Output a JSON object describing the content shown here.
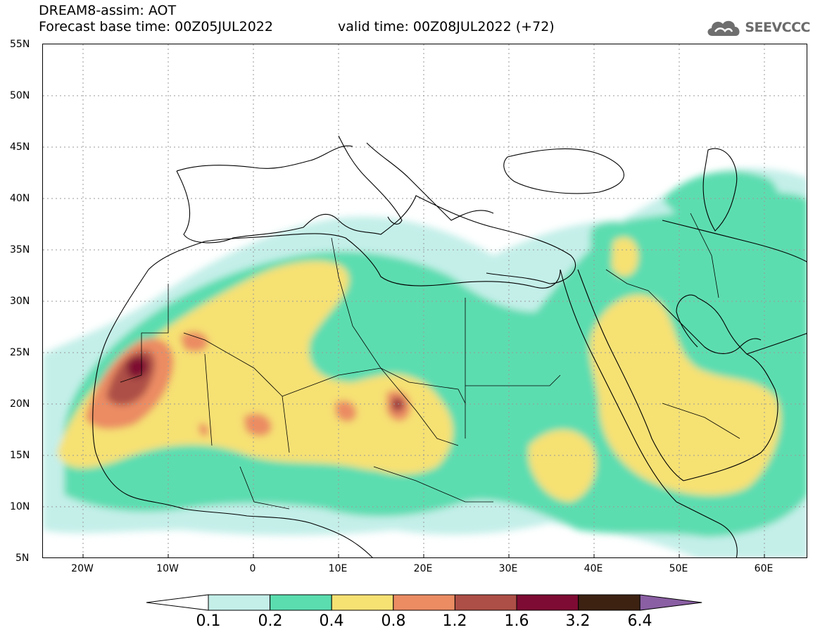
{
  "header": {
    "title": "DREAM8-assim: AOT",
    "base_time": "Forecast base time: 00Z05JUL2022",
    "valid_time": "valid time: 00Z08JUL2022 (+72)"
  },
  "logo": {
    "text": "SEEVCCC",
    "icon": "cloud-icon"
  },
  "map": {
    "lon_range": [
      -25,
      65
    ],
    "lat_range": [
      5,
      55
    ],
    "lat_labels": [
      "55N",
      "50N",
      "45N",
      "40N",
      "35N",
      "30N",
      "25N",
      "20N",
      "15N",
      "10N",
      "5N"
    ],
    "lon_labels": [
      "20W",
      "10W",
      "0",
      "10E",
      "20E",
      "30E",
      "40E",
      "50E",
      "60E"
    ],
    "lat_values": [
      55,
      50,
      45,
      40,
      35,
      30,
      25,
      20,
      15,
      10,
      5
    ],
    "lon_values": [
      -20,
      -10,
      0,
      10,
      20,
      30,
      40,
      50,
      60
    ],
    "grid": true
  },
  "legend": {
    "labels": [
      "0.1",
      "0.2",
      "0.4",
      "0.8",
      "1.2",
      "1.6",
      "3.2",
      "6.4"
    ],
    "colors": [
      "#ffffff",
      "#c4efe9",
      "#5bddb0",
      "#f6e173",
      "#eb8c63",
      "#ad4f46",
      "#7e0b33",
      "#3d2212",
      "#8a5fa3"
    ]
  }
}
